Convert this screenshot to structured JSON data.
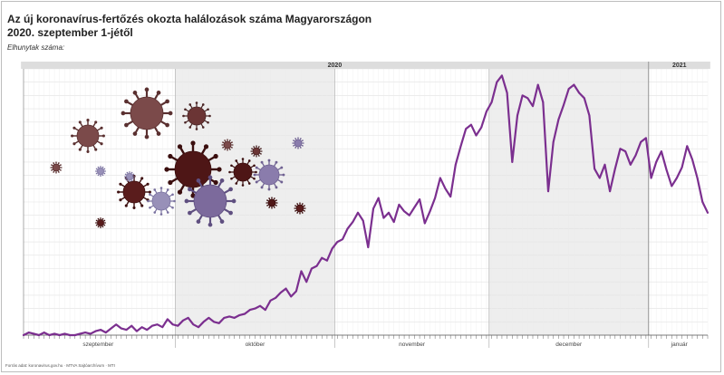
{
  "header": {
    "title": "Az új koronavírus-fertőzés okozta halálozások száma Magyarországon",
    "subtitle": "2020. szeptember 1-jétől",
    "y_label": "Elhunytak száma:"
  },
  "source": "Forrás adat: koronavirus.gov.hu · MTVA Sajtóarchívum · MTI",
  "colors": {
    "line": "#7b2f8f",
    "shade": "#eeeeee",
    "year_band": "#dddddd"
  },
  "chart_data": {
    "type": "line",
    "title": "Az új koronavírus-fertőzés okozta halálozások száma Magyarországon",
    "subtitle": "2020. szeptember 1-jétől",
    "ylabel": "Elhunytak száma:",
    "ylim": [
      0,
      200
    ],
    "grid": true,
    "years": [
      {
        "label": "2020",
        "start_day": 0,
        "end_day": 121
      },
      {
        "label": "2021",
        "start_day": 122,
        "end_day": 133
      }
    ],
    "months": [
      {
        "label": "szeptember",
        "start_day": 0,
        "end_day": 29,
        "shaded": false
      },
      {
        "label": "október",
        "start_day": 30,
        "end_day": 60,
        "shaded": true
      },
      {
        "label": "november",
        "start_day": 61,
        "end_day": 90,
        "shaded": false
      },
      {
        "label": "december",
        "start_day": 91,
        "end_day": 121,
        "shaded": true
      },
      {
        "label": "január",
        "start_day": 122,
        "end_day": 133,
        "shaded": false
      }
    ],
    "series": [
      {
        "values": [
          0,
          2,
          1,
          0,
          2,
          0,
          1,
          0,
          1,
          0,
          0,
          1,
          2,
          1,
          3,
          4,
          2,
          5,
          8,
          5,
          4,
          7,
          3,
          6,
          4,
          7,
          8,
          6,
          12,
          8,
          7,
          11,
          13,
          8,
          6,
          10,
          13,
          10,
          9,
          13,
          14,
          13,
          15,
          16,
          19,
          20,
          22,
          19,
          26,
          28,
          32,
          35,
          29,
          33,
          48,
          40,
          50,
          52,
          58,
          56,
          65,
          70,
          72,
          80,
          85,
          92,
          86,
          66,
          95,
          103,
          88,
          92,
          85,
          98,
          93,
          90,
          96,
          102,
          84,
          93,
          103,
          118,
          110,
          104,
          128,
          142,
          155,
          158,
          150,
          156,
          168,
          175,
          190,
          195,
          182,
          130,
          165,
          180,
          178,
          172,
          188,
          175,
          108,
          145,
          162,
          173,
          185,
          188,
          182,
          178,
          165,
          125,
          118,
          128,
          108,
          125,
          140,
          138,
          128,
          135,
          145,
          148,
          118,
          130,
          138,
          124,
          112,
          118,
          126,
          142,
          132,
          118,
          100,
          92
        ]
      }
    ]
  }
}
